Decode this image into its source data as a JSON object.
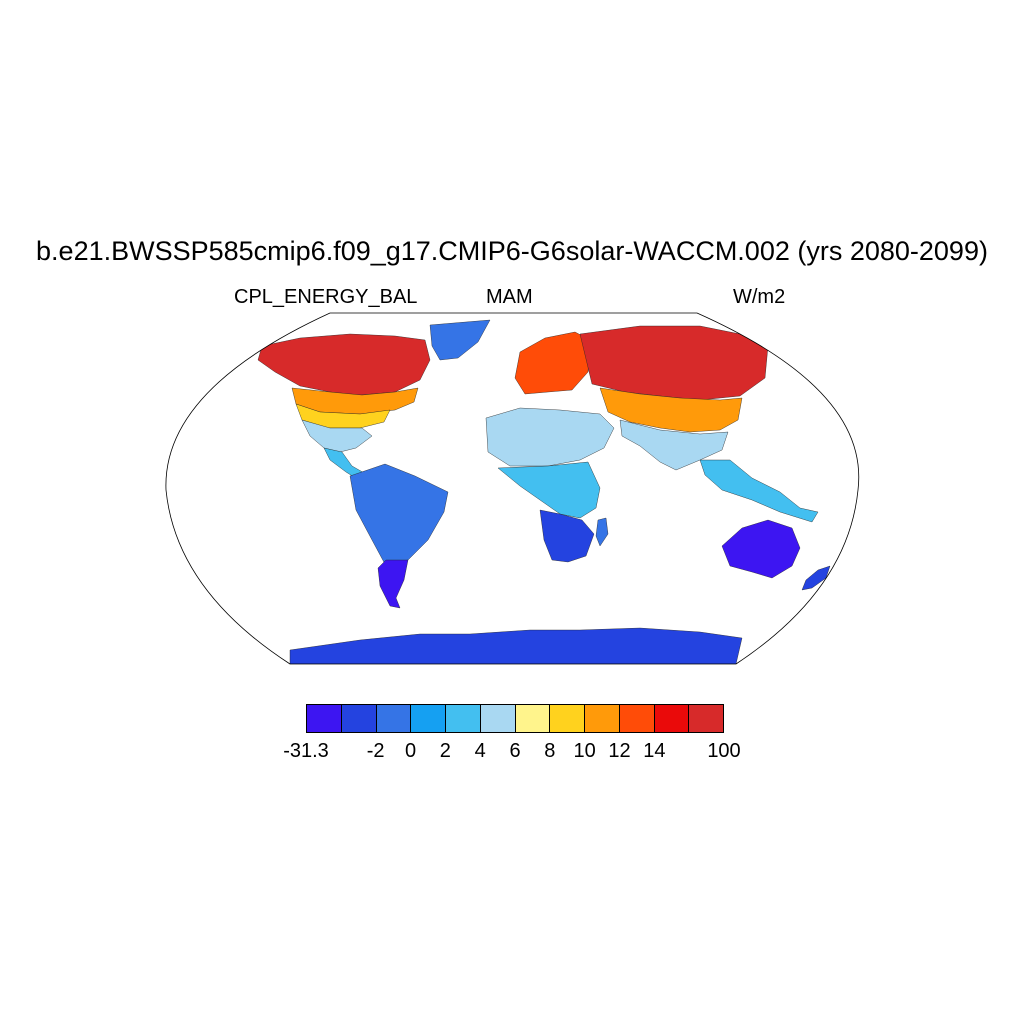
{
  "title": "b.e21.BWSSP585cmip6.f09_g17.CMIP6-G6solar-WACCM.002 (yrs 2080-2099)",
  "subtitle_left": "CPL_ENERGY_BAL",
  "subtitle_center": "MAM",
  "subtitle_right": "W/m2",
  "colorbar": {
    "colors": [
      "#3d15f2",
      "#2443e0",
      "#3574e6",
      "#15a0f2",
      "#43bff0",
      "#a9d8f2",
      "#fff48c",
      "#ffd21e",
      "#ff9a0a",
      "#ff4c08",
      "#ea0a0a",
      "#d72a2a"
    ],
    "labels": [
      {
        "text": "-31.3",
        "boundary": 0
      },
      {
        "text": "-2",
        "boundary": 2
      },
      {
        "text": "0",
        "boundary": 3
      },
      {
        "text": "2",
        "boundary": 4
      },
      {
        "text": "4",
        "boundary": 5
      },
      {
        "text": "6",
        "boundary": 6
      },
      {
        "text": "8",
        "boundary": 7
      },
      {
        "text": "10",
        "boundary": 8
      },
      {
        "text": "12",
        "boundary": 9
      },
      {
        "text": "14",
        "boundary": 10
      },
      {
        "text": "100",
        "boundary": 12
      }
    ]
  },
  "regions": [
    {
      "name": "greenland",
      "color": "#3574e6"
    },
    {
      "name": "north-america-north",
      "color": "#d72a2a"
    },
    {
      "name": "north-america-mid",
      "color": "#ff9a0a"
    },
    {
      "name": "north-america-east",
      "color": "#ffd21e"
    },
    {
      "name": "north-america-south",
      "color": "#a9d8f2"
    },
    {
      "name": "central-america",
      "color": "#43bff0"
    },
    {
      "name": "south-america-north",
      "color": "#3574e6"
    },
    {
      "name": "south-america-south",
      "color": "#3d15f2"
    },
    {
      "name": "europe",
      "color": "#ff4c08"
    },
    {
      "name": "eurasia-north",
      "color": "#d72a2a"
    },
    {
      "name": "central-asia",
      "color": "#ff9a0a"
    },
    {
      "name": "south-asia",
      "color": "#a9d8f2"
    },
    {
      "name": "north-africa",
      "color": "#a9d8f2"
    },
    {
      "name": "central-africa",
      "color": "#43bff0"
    },
    {
      "name": "southern-africa",
      "color": "#2443e0"
    },
    {
      "name": "madagascar",
      "color": "#3574e6"
    },
    {
      "name": "southeast-asia",
      "color": "#43bff0"
    },
    {
      "name": "australia",
      "color": "#3d15f2"
    },
    {
      "name": "new-zealand",
      "color": "#2443e0"
    },
    {
      "name": "antarctica",
      "color": "#2443e0"
    }
  ]
}
